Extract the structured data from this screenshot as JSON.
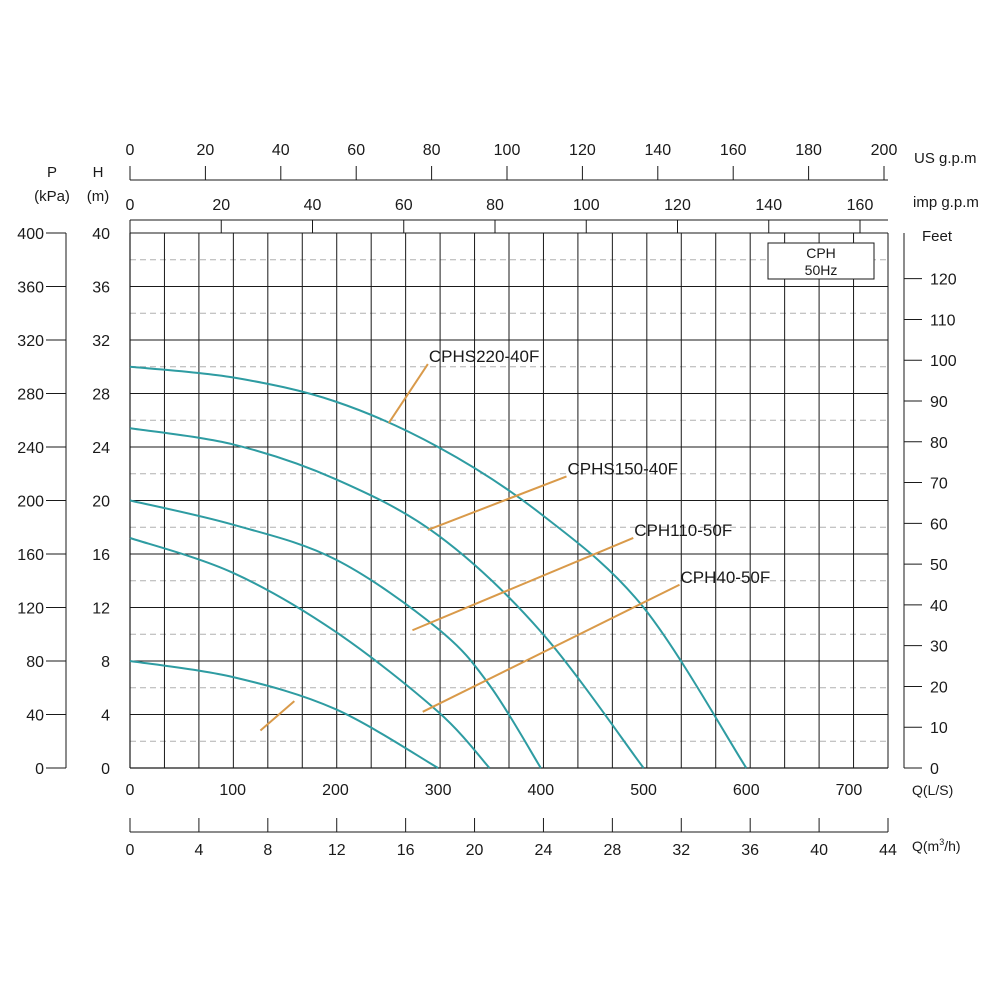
{
  "chart_data": {
    "type": "line",
    "title": "",
    "legend_box": [
      "CPH",
      "50Hz"
    ],
    "legend_position": "top-right",
    "grid": true,
    "x": {
      "label": "Q(L/S)",
      "ticks": [
        "0",
        "100",
        "200",
        "300",
        "400",
        "500",
        "600",
        "700"
      ],
      "range": [
        0,
        738
      ]
    },
    "x_m3h": {
      "label_main": "Q(m",
      "label_sup": "3",
      "label_tail": "/h)",
      "ticks": [
        "0",
        "4",
        "8",
        "12",
        "16",
        "20",
        "24",
        "28",
        "32",
        "36",
        "40",
        "44"
      ]
    },
    "x_usgpm": {
      "label": "US g.p.m",
      "ticks": [
        "0",
        "20",
        "40",
        "60",
        "80",
        "100",
        "120",
        "140",
        "160",
        "180",
        "200"
      ]
    },
    "x_impgpm": {
      "label": "imp g.p.m",
      "ticks": [
        "0",
        "20",
        "40",
        "60",
        "80",
        "100",
        "120",
        "140",
        "160"
      ]
    },
    "y_head": {
      "label_top": "H",
      "label_bottom": "(m)",
      "ticks": [
        "0",
        "4",
        "8",
        "12",
        "16",
        "20",
        "24",
        "28",
        "32",
        "36",
        "40"
      ],
      "range": [
        0,
        40
      ]
    },
    "y_pressure": {
      "label_top": "P",
      "label_bottom": "(kPa)",
      "ticks": [
        "0",
        "40",
        "80",
        "120",
        "160",
        "200",
        "240",
        "280",
        "320",
        "360",
        "400"
      ]
    },
    "y_feet": {
      "label": "Feet",
      "ticks": [
        "0",
        "10",
        "20",
        "30",
        "40",
        "50",
        "60",
        "70",
        "80",
        "90",
        "100",
        "110",
        "120"
      ]
    },
    "series": [
      {
        "name": "CPH40-50F",
        "points": [
          [
            0,
            8
          ],
          [
            100,
            6.8
          ],
          [
            200,
            4.4
          ],
          [
            300,
            0
          ]
        ]
      },
      {
        "name": "CPH110-50F",
        "points": [
          [
            0,
            17.2
          ],
          [
            100,
            14.6
          ],
          [
            200,
            10.2
          ],
          [
            300,
            4.2
          ],
          [
            350,
            0
          ]
        ]
      },
      {
        "name": "CPHS150-40F",
        "points": [
          [
            0,
            20
          ],
          [
            100,
            18.2
          ],
          [
            200,
            15.6
          ],
          [
            300,
            10.4
          ],
          [
            350,
            6.2
          ],
          [
            400,
            0
          ]
        ]
      },
      {
        "name": "CPHS220-40F",
        "points": [
          [
            0,
            25.4
          ],
          [
            100,
            24.2
          ],
          [
            200,
            21.6
          ],
          [
            300,
            17.4
          ],
          [
            400,
            10.2
          ],
          [
            500,
            0
          ]
        ]
      },
      {
        "name": "CPHS220-40F",
        "points": [
          [
            0,
            30
          ],
          [
            100,
            29.2
          ],
          [
            200,
            27.4
          ],
          [
            300,
            24
          ],
          [
            400,
            19
          ],
          [
            500,
            12
          ],
          [
            600,
            0
          ]
        ]
      }
    ],
    "annotations": [
      {
        "text": "CPHS220-40F",
        "target": [
          252,
          25.8
        ],
        "label_anchor": [
          290,
          30.2
        ]
      },
      {
        "text": "CPHS150-40F",
        "target": [
          290,
          17.8
        ],
        "label_anchor": [
          425,
          21.8
        ]
      },
      {
        "text": "CPH110-50F",
        "target": [
          275,
          10.3
        ],
        "label_anchor": [
          490,
          17.2
        ]
      },
      {
        "text": "CPH40-50F",
        "target": [
          285,
          4.2
        ],
        "label_anchor": [
          535,
          13.7
        ]
      },
      {
        "text": "",
        "target": [
          160,
          5
        ],
        "label_anchor": [
          127,
          2.8
        ]
      }
    ],
    "colors": {
      "curve": "#2e9ca2",
      "leader": "#d99a4a",
      "grid": "#1a1a1a",
      "minor_grid": "#b0b0b0"
    }
  }
}
